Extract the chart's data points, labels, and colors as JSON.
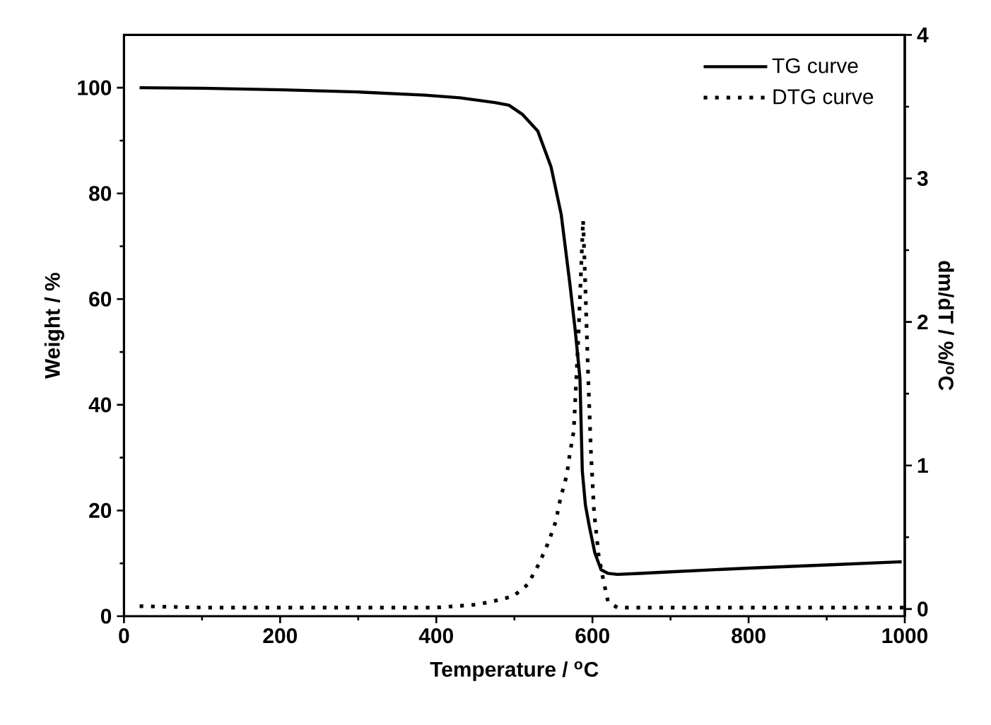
{
  "chart_data": {
    "type": "line",
    "xlabel": "Temperature / $^{o}$C",
    "ylabel": "Weight / %",
    "y2label": "dm/dT  /  %/$^{o}$C",
    "xlim": [
      0,
      1000
    ],
    "xticks": [
      0,
      200,
      400,
      600,
      800,
      1000
    ],
    "ylim": [
      0,
      110
    ],
    "yticks": [
      0,
      20,
      40,
      60,
      80,
      100
    ],
    "y2lim": [
      -0.05,
      4
    ],
    "y2ticks": [
      0,
      1,
      2,
      3,
      4
    ],
    "legend": "top right",
    "series": [
      {
        "name": "TG curve",
        "color": "#000000",
        "line_style": "solid",
        "x": [
          20,
          100,
          203,
          300,
          385,
          430,
          475,
          493,
          510,
          530,
          547,
          560,
          571,
          578,
          584,
          587,
          591,
          596,
          603,
          611,
          620,
          632,
          660,
          700,
          800,
          900,
          996
        ],
        "values": [
          100,
          99.9,
          99.6,
          99.2,
          98.6,
          98.1,
          97.2,
          96.7,
          95,
          91.8,
          85,
          76,
          63,
          54,
          45,
          27.5,
          21,
          17,
          12,
          8.8,
          8.1,
          7.9,
          8.1,
          8.4,
          9.1,
          9.7,
          10.3
        ]
      },
      {
        "name": "DTG curve",
        "color": "#000000",
        "line_style": "dotted",
        "axis": "y2",
        "x": [
          20,
          100,
          200,
          300,
          400,
          450,
          470,
          485,
          499,
          517,
          532,
          544,
          553,
          559,
          567,
          571,
          576,
          582,
          588,
          590,
          594,
          598,
          602,
          608,
          614,
          620,
          632,
          700,
          800,
          900,
          1000
        ],
        "values": [
          0.02,
          0.01,
          0.01,
          0.01,
          0.01,
          0.03,
          0.05,
          0.07,
          0.09,
          0.17,
          0.32,
          0.47,
          0.61,
          0.77,
          0.93,
          1.08,
          1.24,
          1.9,
          2.71,
          2.4,
          1.7,
          1.1,
          0.68,
          0.37,
          0.2,
          0.05,
          0.01,
          0.01,
          0.01,
          0.01,
          0.01
        ]
      }
    ]
  }
}
